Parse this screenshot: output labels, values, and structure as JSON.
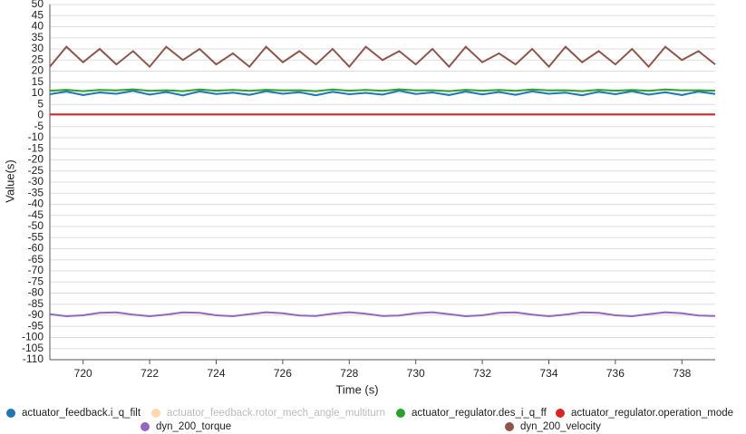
{
  "chart_data": {
    "type": "line",
    "x_label": "Time (s)",
    "y_label": "Value(s)",
    "xlim": [
      719,
      739
    ],
    "xticks": [
      720,
      722,
      724,
      726,
      728,
      730,
      732,
      734,
      736,
      738
    ],
    "ylim": [
      -110,
      50
    ],
    "yticks": [
      -110,
      -105,
      -100,
      -95,
      -90,
      -85,
      -80,
      -75,
      -70,
      -65,
      -60,
      -55,
      -50,
      -45,
      -40,
      -35,
      -30,
      -25,
      -20,
      -15,
      -10,
      -5,
      0,
      5,
      10,
      15,
      20,
      25,
      30,
      35,
      40,
      45,
      50
    ],
    "grid": true,
    "legend": "bottom",
    "x": [
      719,
      719.5,
      720,
      720.5,
      721,
      721.5,
      722,
      722.5,
      723,
      723.5,
      724,
      724.5,
      725,
      725.5,
      726,
      726.5,
      727,
      727.5,
      728,
      728.5,
      729,
      729.5,
      730,
      730.5,
      731,
      731.5,
      732,
      732.5,
      733,
      733.5,
      734,
      734.5,
      735,
      735.5,
      736,
      736.5,
      737,
      737.5,
      738,
      738.5,
      739
    ],
    "series": [
      {
        "name": "actuator_feedback.i_q_filt",
        "color": "#1f77b4",
        "visible": true,
        "values": [
          9.6,
          10.8,
          9.2,
          10.4,
          9.8,
          11.1,
          9.4,
          10.6,
          9.0,
          10.9,
          9.7,
          10.3,
          9.3,
          11.0,
          9.8,
          10.5,
          9.1,
          10.7,
          9.6,
          10.2,
          9.4,
          11.2,
          9.7,
          10.4,
          9.2,
          10.8,
          9.5,
          10.6,
          9.3,
          10.9,
          9.8,
          10.3,
          9.1,
          10.7,
          9.6,
          11.0,
          9.4,
          10.5,
          9.2,
          10.8,
          9.7
        ]
      },
      {
        "name": "actuator_feedback.rotor_mech_angle_multiturn",
        "color": "#ffd8b0",
        "visible": false,
        "values": [
          null,
          null,
          null,
          null,
          null,
          null,
          null,
          null,
          null,
          null,
          null,
          null,
          null,
          null,
          null,
          null,
          null,
          null,
          null,
          null,
          null,
          null,
          null,
          null,
          null,
          null,
          null,
          null,
          null,
          null,
          null,
          null,
          null,
          null,
          null,
          null,
          null,
          null,
          null,
          null,
          null
        ]
      },
      {
        "name": "actuator_regulator.des_i_q_ff",
        "color": "#2ca02c",
        "visible": true,
        "values": [
          11.2,
          11.6,
          11.0,
          11.5,
          11.3,
          11.8,
          11.1,
          11.4,
          11.0,
          11.7,
          11.2,
          11.5,
          11.1,
          11.6,
          11.3,
          11.4,
          11.0,
          11.7,
          11.2,
          11.5,
          11.1,
          11.8,
          11.3,
          11.4,
          11.0,
          11.6,
          11.2,
          11.5,
          11.1,
          11.7,
          11.3,
          11.4,
          11.0,
          11.6,
          11.2,
          11.5,
          11.1,
          11.7,
          11.3,
          11.4,
          11.2
        ]
      },
      {
        "name": "actuator_regulator.operation_mode",
        "color": "#d62728",
        "visible": true,
        "values": [
          0.5,
          0.5,
          0.5,
          0.5,
          0.5,
          0.5,
          0.5,
          0.5,
          0.5,
          0.5,
          0.5,
          0.5,
          0.5,
          0.5,
          0.5,
          0.5,
          0.5,
          0.5,
          0.5,
          0.5,
          0.5,
          0.5,
          0.5,
          0.5,
          0.5,
          0.5,
          0.5,
          0.5,
          0.5,
          0.5,
          0.5,
          0.5,
          0.5,
          0.5,
          0.5,
          0.5,
          0.5,
          0.5,
          0.5,
          0.5,
          0.5
        ]
      },
      {
        "name": "dyn_200_torque",
        "color": "#9467bd",
        "visible": true,
        "values": [
          -89.5,
          -90.4,
          -90.0,
          -88.9,
          -88.7,
          -89.7,
          -90.4,
          -89.7,
          -88.7,
          -88.9,
          -90.0,
          -90.4,
          -89.5,
          -88.6,
          -89.1,
          -90.1,
          -90.3,
          -89.3,
          -88.6,
          -89.3,
          -90.3,
          -90.1,
          -89.1,
          -88.6,
          -89.5,
          -90.4,
          -90.0,
          -88.9,
          -88.7,
          -89.7,
          -90.4,
          -89.7,
          -88.7,
          -88.9,
          -90.0,
          -90.4,
          -89.5,
          -88.6,
          -89.1,
          -90.1,
          -90.3
        ]
      },
      {
        "name": "dyn_200_velocity",
        "color": "#8c564b",
        "visible": true,
        "values": [
          22,
          31,
          24,
          30,
          23,
          29,
          22,
          31,
          25,
          30,
          23,
          28,
          22,
          31,
          24,
          29,
          23,
          30,
          22,
          31,
          25,
          29,
          23,
          30,
          22,
          31,
          24,
          28,
          23,
          30,
          22,
          31,
          24,
          29,
          23,
          30,
          22,
          31,
          25,
          29,
          23
        ]
      }
    ]
  }
}
